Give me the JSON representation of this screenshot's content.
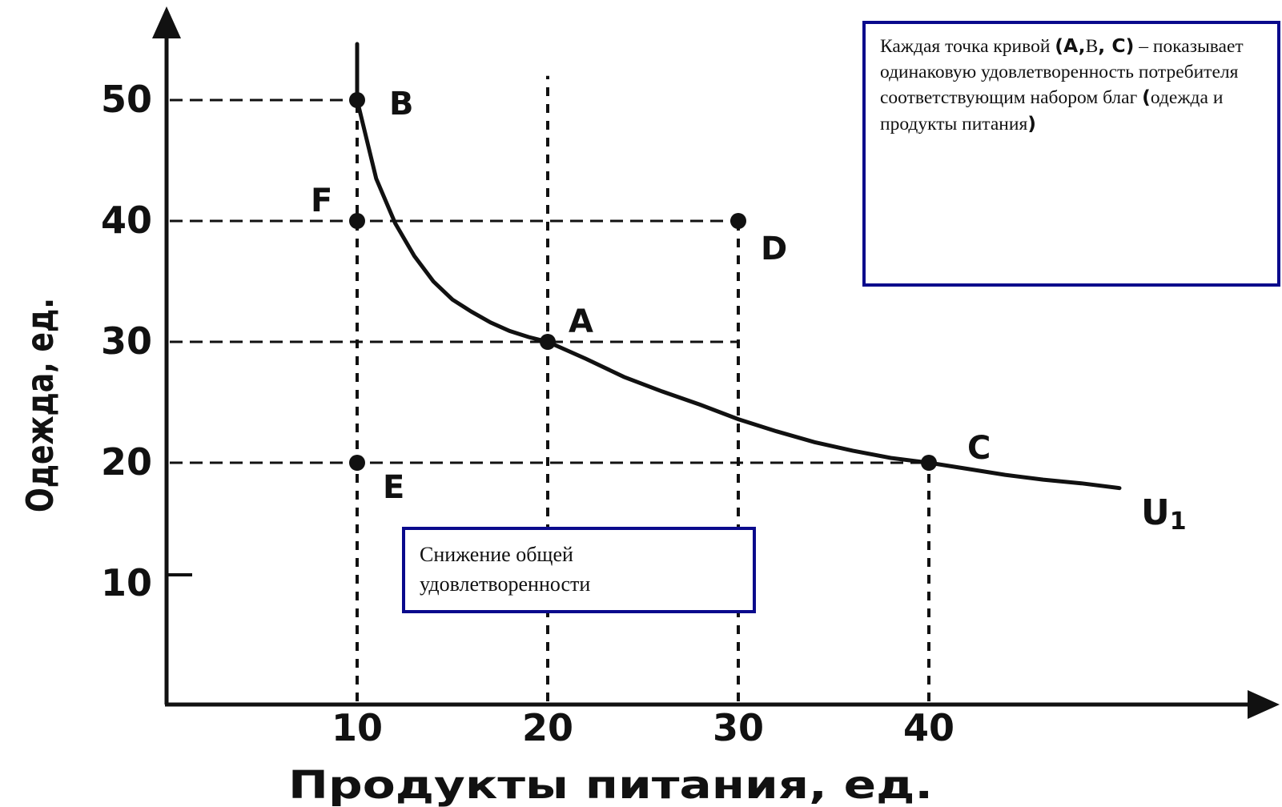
{
  "chart_data": {
    "type": "line",
    "xlabel": "Продукты питания, ед.",
    "ylabel": "Одежда, ед.",
    "xlim": [
      0,
      55
    ],
    "ylim": [
      0,
      55
    ],
    "x_ticks": [
      "10",
      "20",
      "30",
      "40"
    ],
    "y_ticks": [
      "10",
      "20",
      "30",
      "40",
      "50"
    ],
    "series": [
      {
        "name": "U1",
        "x": [
          10,
          11,
          12,
          13,
          14,
          15,
          16,
          17,
          18,
          19,
          20,
          22,
          24,
          26,
          28,
          30,
          32,
          34,
          36,
          38,
          40,
          42,
          44,
          46,
          48,
          50
        ],
        "y": [
          50,
          43.5,
          39.8,
          37.1,
          35.0,
          33.5,
          32.5,
          31.6,
          30.9,
          30.4,
          30,
          28.6,
          27.1,
          25.9,
          24.8,
          23.6,
          22.6,
          21.7,
          21.0,
          20.4,
          20,
          19.5,
          19.0,
          18.6,
          18.3,
          17.9
        ]
      }
    ],
    "points": [
      {
        "label": "B",
        "x": 10,
        "y": 50
      },
      {
        "label": "F",
        "x": 10,
        "y": 40
      },
      {
        "label": "D",
        "x": 30,
        "y": 40
      },
      {
        "label": "A",
        "x": 20,
        "y": 30
      },
      {
        "label": "C",
        "x": 40,
        "y": 20
      },
      {
        "label": "E",
        "x": 10,
        "y": 20
      }
    ],
    "guide_lines": [
      {
        "from": [
          0,
          50
        ],
        "to": [
          10,
          50
        ]
      },
      {
        "from": [
          0,
          40
        ],
        "to": [
          30,
          40
        ]
      },
      {
        "from": [
          0,
          30
        ],
        "to": [
          30,
          30
        ]
      },
      {
        "from": [
          0,
          20
        ],
        "to": [
          40,
          20
        ]
      },
      {
        "from": [
          10,
          0
        ],
        "to": [
          10,
          50
        ]
      },
      {
        "from": [
          20,
          0
        ],
        "to": [
          20,
          52
        ]
      },
      {
        "from": [
          30,
          0
        ],
        "to": [
          30,
          40
        ]
      },
      {
        "from": [
          40,
          0
        ],
        "to": [
          40,
          20
        ]
      }
    ],
    "curve_label": "U",
    "curve_label_sub": "1",
    "grid": false,
    "legend": "none"
  },
  "notes": {
    "main": {
      "part1": "Каждая точка кривой ",
      "part2": "(A,",
      "part3": "В",
      "part4": ", C)",
      "part5": " – показывает одинаковую удовлетворенность потребителя соответствующим набором благ ",
      "part6": "(",
      "part7": "одежда и продукты питания",
      "part8": ")"
    },
    "decrease": "Снижение общей удовлетворенности"
  },
  "colors": {
    "ink": "#111111",
    "box_border": "#0a0a8c",
    "background": "#ffffff"
  }
}
